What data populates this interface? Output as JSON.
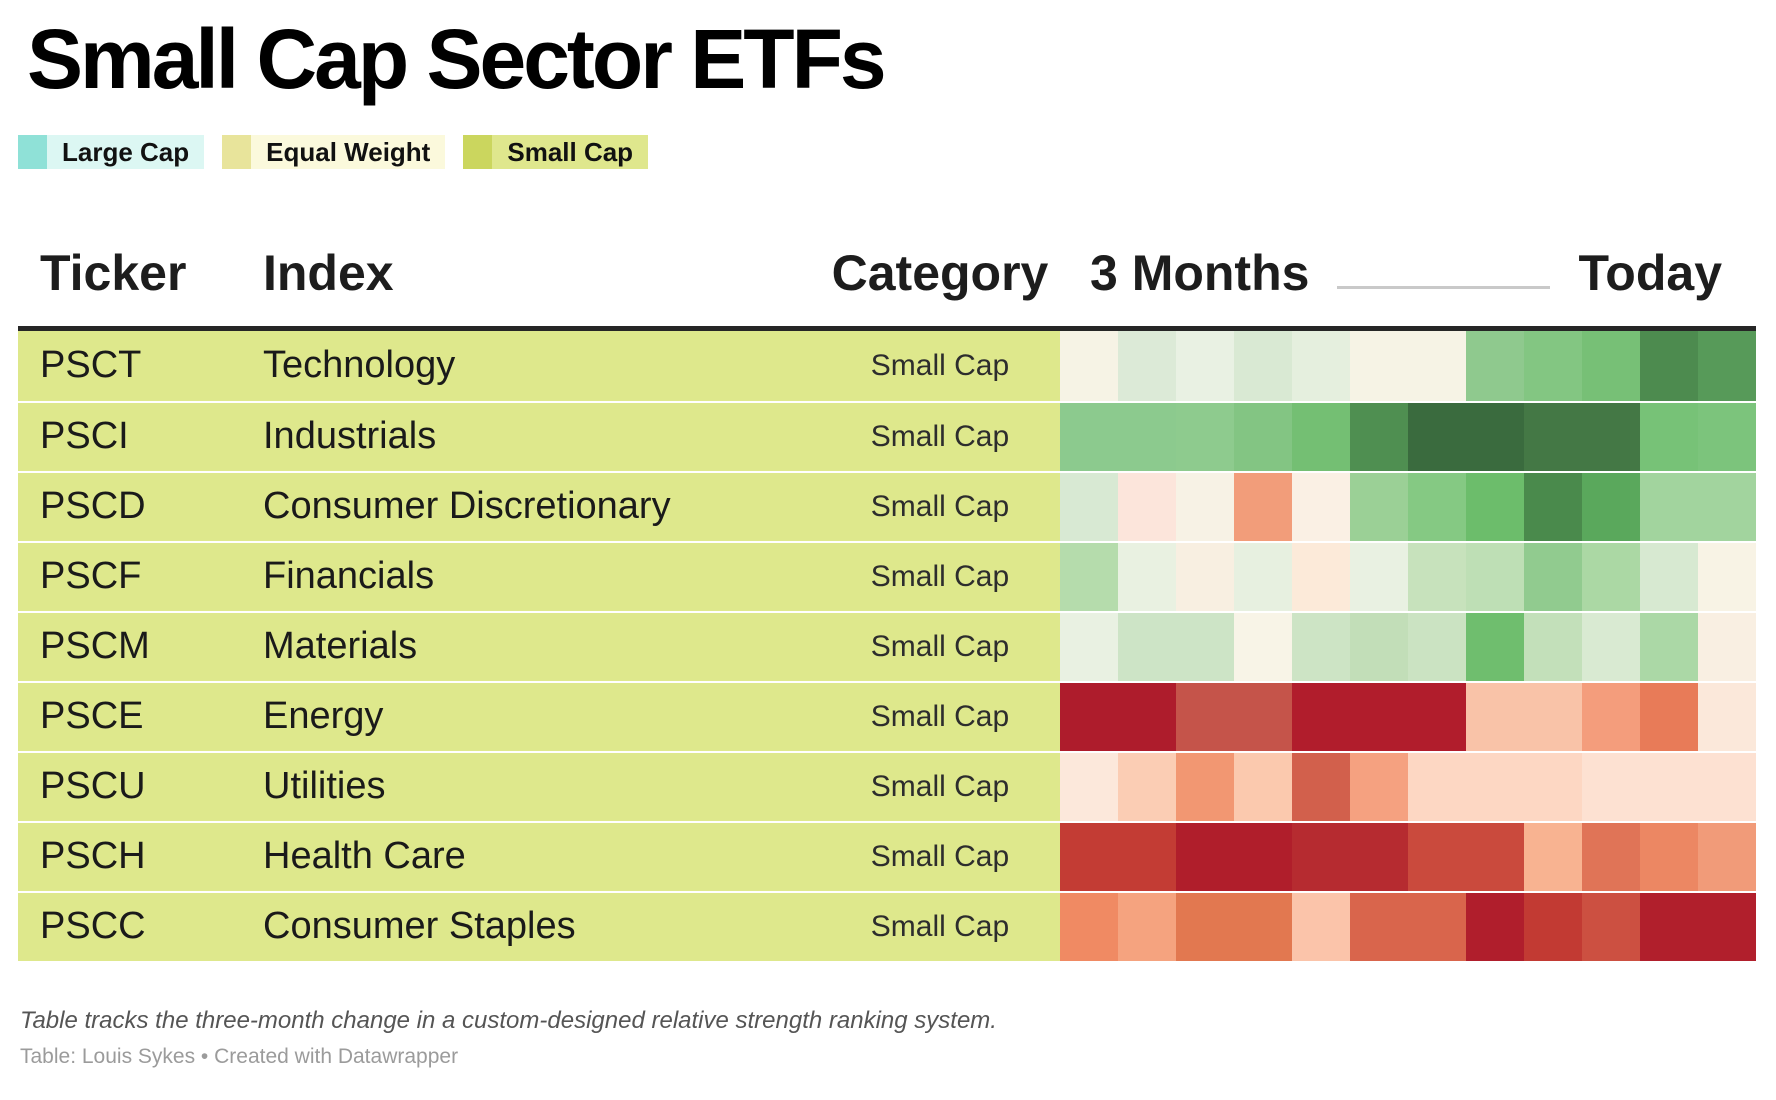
{
  "title": "Small Cap Sector ETFs",
  "legend": {
    "items": [
      {
        "label": "Large Cap",
        "swatch_color": "#8fe1d7",
        "bg_color": "#dcf7f3"
      },
      {
        "label": "Equal Weight",
        "swatch_color": "#e8e49b",
        "bg_color": "#fbf9dc"
      },
      {
        "label": "Small Cap",
        "swatch_color": "#cbd65e",
        "bg_color": "#dfe78d"
      }
    ]
  },
  "table_headers": {
    "ticker": "Ticker",
    "index": "Index",
    "category": "Category",
    "period_start": "3 Months",
    "period_end": "Today"
  },
  "chart_data": {
    "type": "heatmap",
    "title": "Small Cap Sector ETFs",
    "x_axis": {
      "start_label": "3 Months",
      "end_label": "Today",
      "steps": 12
    },
    "category_colors": {
      "Small Cap": "#dee88c"
    },
    "rows": [
      {
        "ticker": "PSCT",
        "index": "Technology",
        "category": "Small Cap",
        "cell_colors": [
          "#f6f3e5",
          "#dcead7",
          "#e9f1e3",
          "#d9e9d3",
          "#e5efde",
          "#f6f3e5",
          "#f6f3e5",
          "#8fc98e",
          "#83c682",
          "#77c076",
          "#4d8b4f",
          "#579a59"
        ]
      },
      {
        "ticker": "PSCI",
        "index": "Industrials",
        "category": "Small Cap",
        "cell_colors": [
          "#8cca8e",
          "#8cca8e",
          "#8ecb8e",
          "#83c583",
          "#74bf73",
          "#4f8f51",
          "#3a6b3e",
          "#3a6b3e",
          "#447845",
          "#447845",
          "#77c277",
          "#7cc47c"
        ]
      },
      {
        "ticker": "PSCD",
        "index": "Consumer Discretionary",
        "category": "Small Cap",
        "cell_colors": [
          "#d8e9d3",
          "#fce5db",
          "#f7f2e5",
          "#f29d7a",
          "#faf0e4",
          "#9bd096",
          "#85c983",
          "#6cbd6b",
          "#4a8a4c",
          "#5aa85c",
          "#a2d49e",
          "#a2d49e"
        ]
      },
      {
        "ticker": "PSCF",
        "index": "Financials",
        "category": "Small Cap",
        "cell_colors": [
          "#b5dcac",
          "#e9f1e1",
          "#f8efe1",
          "#e7f0e0",
          "#fcead9",
          "#e9f1e2",
          "#c7e2bc",
          "#bedfb5",
          "#91cb8f",
          "#abd8a4",
          "#d7e9d1",
          "#f8f3e5"
        ]
      },
      {
        "ticker": "PSCM",
        "index": "Materials",
        "category": "Small Cap",
        "cell_colors": [
          "#e9f1e2",
          "#cde4c6",
          "#cde4c6",
          "#f8f4e7",
          "#cde4c5",
          "#c2deb8",
          "#cbe3c2",
          "#6fbe6e",
          "#c3e0ba",
          "#d9ead2",
          "#abd8a6",
          "#f9efe2"
        ]
      },
      {
        "ticker": "PSCE",
        "index": "Energy",
        "category": "Small Cap",
        "cell_colors": [
          "#ae1c2c",
          "#ae1c2c",
          "#c5544a",
          "#c5544a",
          "#b11d2c",
          "#b11d2c",
          "#b11d2c",
          "#f9c3a8",
          "#f9c3a8",
          "#f49d7c",
          "#e87b58",
          "#fbe8da"
        ]
      },
      {
        "ticker": "PSCU",
        "index": "Utilities",
        "category": "Small Cap",
        "cell_colors": [
          "#fce8db",
          "#fbcdb4",
          "#f29772",
          "#fbc9ae",
          "#d2604c",
          "#f5a180",
          "#fdd7c3",
          "#fdd7c3",
          "#fdd7c3",
          "#fde1d2",
          "#fde1d2",
          "#fde1d2"
        ]
      },
      {
        "ticker": "PSCH",
        "index": "Health Care",
        "category": "Small Cap",
        "cell_colors": [
          "#c33c34",
          "#c33c34",
          "#b01e2b",
          "#b01e2b",
          "#b62b30",
          "#b62b30",
          "#ca4a3d",
          "#ca4a3d",
          "#f8b391",
          "#e07457",
          "#ec8763",
          "#f19b79"
        ]
      },
      {
        "ticker": "PSCC",
        "index": "Consumer Staples",
        "category": "Small Cap",
        "cell_colors": [
          "#f08a63",
          "#f5a37f",
          "#e27850",
          "#e27850",
          "#fbc4aa",
          "#d9654c",
          "#d9654c",
          "#b01e2c",
          "#c23a33",
          "#cc5041",
          "#b11f2c",
          "#b11f2c"
        ]
      }
    ]
  },
  "footer": {
    "note": "Table tracks the three-month change in a custom-designed relative strength ranking system.",
    "credit": "Table: Louis Sykes • Created with Datawrapper"
  }
}
